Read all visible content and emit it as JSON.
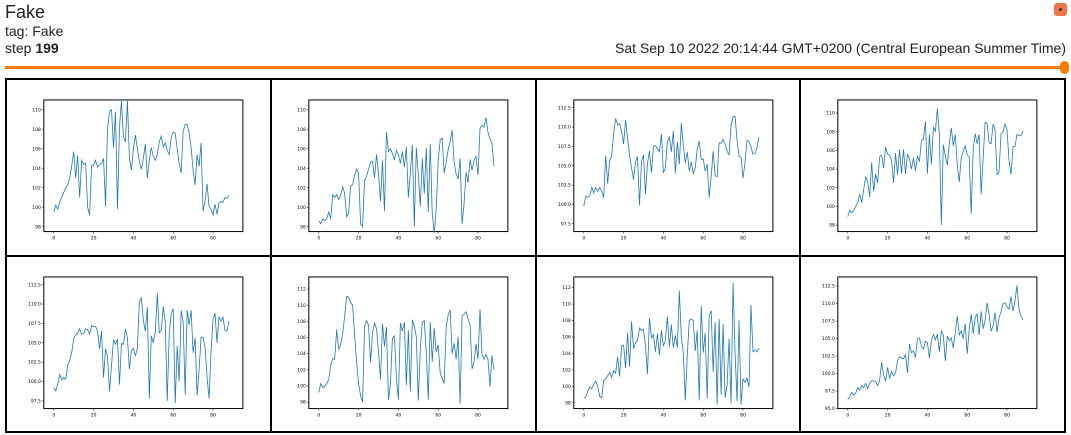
{
  "header": {
    "title": "Fake",
    "tag": "tag: Fake",
    "step_label": "step",
    "step_value": "199",
    "wall_time": "Sat Sep 10 2022 20:14:44 GMT+0200 (Central European Summer Time)"
  },
  "slider": {
    "value": 1.0,
    "color": "#f57c00"
  },
  "menu_button": {
    "icon": "menu-dot-icon",
    "color": "#f0764a"
  },
  "chart_data": [
    {
      "type": "line",
      "x_ticks": [
        "0",
        "20",
        "40",
        "60",
        "80"
      ],
      "y_ticks": [
        "98",
        "100",
        "102",
        "104",
        "106",
        "108",
        "110"
      ],
      "xlim": [
        -5,
        95
      ],
      "ylim": [
        97.5,
        111
      ],
      "series": [
        {
          "values": [
            99.5,
            100.2,
            99.8,
            100.6,
            101.0,
            101.5,
            102.0,
            102.3,
            103.0,
            104.2,
            105.7,
            103.0,
            105.3,
            101.0,
            104.8,
            104.4,
            104.5,
            100.0,
            99.2,
            104.3,
            104.3,
            104.8,
            104.1,
            104.4,
            104.5,
            105.0,
            100.1,
            108.0,
            109.8,
            110.0,
            106.1,
            109.8,
            99.8,
            108.2,
            110.9,
            107.2,
            106.7,
            110.9,
            105.0,
            103.8,
            106.0,
            107.4,
            106.0,
            104.7,
            103.9,
            105.0,
            106.5,
            103.0,
            104.8,
            106.1,
            105.2,
            104.8,
            105.4,
            106.7,
            107.3,
            106.2,
            106.6,
            105.8,
            105.4,
            107.2,
            107.7,
            107.6,
            106.0,
            104.5,
            103.5,
            107.8,
            108.5,
            108.5,
            107.6,
            106.1,
            103.8,
            102.3,
            105.4,
            104.2,
            106.6,
            99.6,
            100.6,
            102.4,
            100.1,
            99.8,
            99.2,
            100.3,
            99.3,
            100.4,
            100.6,
            100.5,
            101.0,
            100.9,
            101.2
          ]
        }
      ]
    },
    {
      "type": "line",
      "x_ticks": [
        "0",
        "20",
        "40",
        "60",
        "80"
      ],
      "y_ticks": [
        "98",
        "100",
        "102",
        "104",
        "106",
        "108",
        "110"
      ],
      "xlim": [
        -5,
        95
      ],
      "ylim": [
        97.5,
        111
      ],
      "series": [
        {
          "values": [
            98.6,
            98.3,
            98.8,
            98.6,
            98.8,
            99.5,
            98.8,
            101.3,
            101.0,
            101.3,
            100.8,
            101.2,
            102.1,
            101.4,
            99.0,
            99.4,
            102.2,
            102.3,
            103.3,
            103.9,
            103.5,
            98.3,
            98.0,
            102.7,
            103.2,
            103.9,
            104.6,
            104.7,
            103.0,
            105.4,
            103.5,
            100.6,
            104.8,
            99.6,
            107.7,
            105.7,
            106.0,
            105.5,
            104.9,
            105.8,
            105.4,
            104.5,
            105.7,
            104.1,
            106.2,
            101.0,
            103.5,
            106.4,
            98.0,
            106.1,
            103.3,
            100.1,
            105.0,
            101.4,
            106.1,
            99.5,
            106.5,
            99.3,
            97.4,
            99.8,
            104.8,
            106.9,
            107.1,
            103.5,
            104.6,
            105.9,
            106.7,
            107.9,
            104.6,
            103.4,
            102.9,
            105.0,
            98.3,
            100.4,
            103.6,
            102.5,
            104.9,
            103.8,
            104.8,
            105.2,
            103.3,
            108.1,
            108.4,
            108.2,
            109.2,
            107.7,
            107.0,
            106.6,
            104.2
          ]
        }
      ]
    },
    {
      "type": "line",
      "x_ticks": [
        "0",
        "20",
        "40",
        "60",
        "80"
      ],
      "y_ticks": [
        "97.5",
        "100.0",
        "102.5",
        "105.0",
        "107.5",
        "110.0",
        "112.5"
      ],
      "xlim": [
        -5,
        95
      ],
      "ylim": [
        96.5,
        113.5
      ],
      "series": [
        {
          "values": [
            99.8,
            101.1,
            100.9,
            101.1,
            102.2,
            101.5,
            102.2,
            101.7,
            102.2,
            101.7,
            100.9,
            106.3,
            102.7,
            105.7,
            106.2,
            109.1,
            111.1,
            110.3,
            110.4,
            109.5,
            107.8,
            110.9,
            108.6,
            106.3,
            104.7,
            103.2,
            105.5,
            106.2,
            99.9,
            105.5,
            106.4,
            101.3,
            105.3,
            106.9,
            104.1,
            107.5,
            107.6,
            107.2,
            106.8,
            109.1,
            104.1,
            104.7,
            108.1,
            108.7,
            106.8,
            109.5,
            104.0,
            108.1,
            105.2,
            110.5,
            107.6,
            105.4,
            106.8,
            104.3,
            105.5,
            104.0,
            104.7,
            107.2,
            108.2,
            105.8,
            105.9,
            104.3,
            105.2,
            100.9,
            103.6,
            106.9,
            103.7,
            103.6,
            108.0,
            107.9,
            108.4,
            107.8,
            106.9,
            106.4,
            110.3,
            111.3,
            111.4,
            108.3,
            106.2,
            106.1,
            103.4,
            105.4,
            108.3,
            108.1,
            107.4,
            106.5,
            106.6,
            107.3,
            108.7
          ]
        }
      ]
    },
    {
      "type": "line",
      "x_ticks": [
        "0",
        "20",
        "40",
        "60",
        "80"
      ],
      "y_ticks": [
        "98",
        "100",
        "102",
        "104",
        "106",
        "108",
        "110"
      ],
      "xlim": [
        -5,
        95
      ],
      "ylim": [
        97.3,
        111.4
      ],
      "series": [
        {
          "values": [
            98.9,
            99.6,
            99.3,
            99.6,
            100.0,
            100.4,
            101.3,
            100.4,
            101.8,
            103.2,
            102.6,
            101.0,
            104.7,
            101.6,
            103.5,
            102.5,
            105.3,
            105.5,
            104.1,
            106.3,
            105.6,
            105.5,
            104.9,
            102.5,
            105.7,
            103.4,
            106.1,
            103.5,
            106.1,
            103.5,
            105.6,
            105.1,
            104.0,
            105.2,
            103.8,
            105.4,
            104.8,
            107.1,
            107.2,
            109.1,
            103.5,
            107.7,
            104.5,
            108.5,
            108.0,
            110.5,
            107.8,
            98.0,
            106.6,
            105.4,
            104.4,
            106.7,
            108.4,
            106.5,
            107.7,
            104.5,
            102.6,
            105.2,
            105.9,
            106.5,
            105.5,
            105.3,
            99.2,
            106.0,
            107.8,
            106.7,
            107.7,
            101.3,
            105.1,
            109.0,
            108.9,
            106.8,
            106.7,
            108.8,
            108.2,
            103.4,
            103.7,
            107.8,
            108.0,
            108.8,
            108.2,
            104.9,
            103.4,
            106.4,
            106.4,
            107.7,
            107.6,
            107.6,
            108.1
          ]
        }
      ]
    },
    {
      "type": "line",
      "x_ticks": [
        "0",
        "20",
        "40",
        "60",
        "80"
      ],
      "y_ticks": [
        "97.5",
        "100.0",
        "102.5",
        "105.0",
        "107.5",
        "110.0",
        "112.5"
      ],
      "xlim": [
        -5,
        95
      ],
      "ylim": [
        96.5,
        113.5
      ],
      "series": [
        {
          "values": [
            99.2,
            98.8,
            99.7,
            100.9,
            100.2,
            100.5,
            100.3,
            102.1,
            102.7,
            103.7,
            105.6,
            106.0,
            106.2,
            106.8,
            106.1,
            106.2,
            106.8,
            106.7,
            106.1,
            107.2,
            107.1,
            107.1,
            106.5,
            104.2,
            106.5,
            100.5,
            104.2,
            103.2,
            98.7,
            102.1,
            105.4,
            104.8,
            105.5,
            99.6,
            104.9,
            104.8,
            106.8,
            105.6,
            101.6,
            104.0,
            104.3,
            103.3,
            104.3,
            110.3,
            110.8,
            107.9,
            106.5,
            109.6,
            97.8,
            105.9,
            105.0,
            106.4,
            111.4,
            106.3,
            106.6,
            109.7,
            107.6,
            97.5,
            106.1,
            108.8,
            109.4,
            97.2,
            104.6,
            100.0,
            109.2,
            107.7,
            98.3,
            109.2,
            107.3,
            109.2,
            103.7,
            105.6,
            98.2,
            101.5,
            105.7,
            105.7,
            104.4,
            100.6,
            97.8,
            103.8,
            108.0,
            108.8,
            105.0,
            108.3,
            107.8,
            108.3,
            106.6,
            106.5,
            107.8
          ]
        }
      ]
    },
    {
      "type": "line",
      "x_ticks": [
        "0",
        "20",
        "40",
        "60",
        "80"
      ],
      "y_ticks": [
        "98",
        "100",
        "102",
        "104",
        "106",
        "108",
        "110",
        "112"
      ],
      "xlim": [
        -5,
        95
      ],
      "ylim": [
        97.2,
        113.5
      ],
      "series": [
        {
          "values": [
            99.2,
            100.3,
            99.8,
            100.0,
            100.3,
            100.8,
            102.6,
            103.4,
            103.3,
            107.0,
            104.5,
            105.1,
            106.5,
            108.6,
            111.1,
            111.0,
            110.3,
            110.0,
            106.3,
            102.9,
            100.3,
            98.8,
            98.0,
            107.4,
            108.1,
            107.5,
            102.9,
            106.5,
            107.8,
            107.1,
            104.2,
            100.8,
            107.7,
            104.9,
            107.3,
            98.3,
            100.3,
            105.9,
            106.2,
            101.0,
            98.3,
            107.8,
            106.8,
            107.9,
            100.1,
            106.9,
            99.3,
            108.2,
            107.4,
            106.1,
            98.2,
            104.6,
            107.9,
            108.1,
            104.2,
            98.3,
            107.9,
            103.0,
            107.2,
            104.2,
            105.1,
            101.6,
            100.9,
            100.3,
            107.3,
            108.8,
            109.4,
            104.0,
            105.3,
            103.3,
            106.1,
            97.8,
            108.7,
            108.9,
            109.2,
            108.3,
            107.6,
            102.1,
            103.0,
            105.2,
            103.3,
            109.5,
            104.0,
            103.3,
            103.9,
            103.3,
            99.9,
            103.8,
            102.0
          ]
        }
      ]
    },
    {
      "type": "line",
      "x_ticks": [
        "0",
        "20",
        "40",
        "60",
        "80"
      ],
      "y_ticks": [
        "98",
        "100",
        "102",
        "104",
        "106",
        "108",
        "110",
        "112"
      ],
      "xlim": [
        -5,
        95
      ],
      "ylim": [
        97.3,
        113.3
      ],
      "series": [
        {
          "values": [
            98.6,
            98.7,
            99.4,
            99.9,
            99.7,
            100.3,
            100.6,
            100.0,
            98.8,
            98.6,
            100.7,
            100.9,
            101.3,
            101.7,
            101.1,
            101.9,
            101.6,
            103.6,
            101.2,
            104.9,
            105.0,
            102.2,
            106.5,
            102.4,
            107.9,
            104.6,
            105.3,
            105.6,
            107.1,
            106.8,
            106.9,
            104.9,
            101.5,
            108.3,
            105.9,
            106.3,
            104.2,
            106.4,
            103.8,
            106.8,
            104.9,
            105.6,
            108.5,
            104.8,
            107.5,
            104.7,
            106.2,
            104.7,
            111.6,
            106.0,
            104.1,
            98.3,
            103.8,
            108.0,
            108.2,
            108.0,
            104.3,
            106.8,
            98.3,
            109.8,
            104.1,
            106.5,
            98.5,
            108.6,
            109.2,
            101.7,
            107.8,
            97.8,
            108.2,
            99.0,
            107.6,
            98.6,
            100.2,
            105.8,
            97.9,
            112.6,
            104.0,
            98.2,
            108.0,
            97.8,
            100.9,
            100.5,
            101.0,
            99.9,
            109.9,
            104.2,
            104.4,
            104.2,
            104.6
          ]
        }
      ]
    },
    {
      "type": "line",
      "x_ticks": [
        "0",
        "20",
        "40",
        "60",
        "80"
      ],
      "y_ticks": [
        "95.0",
        "97.5",
        "100.0",
        "102.5",
        "105.0",
        "107.5",
        "110.0",
        "112.5"
      ],
      "xlim": [
        -5,
        95
      ],
      "ylim": [
        95.0,
        113.8
      ],
      "series": [
        {
          "values": [
            96.3,
            96.7,
            97.3,
            96.9,
            97.2,
            98.0,
            97.6,
            98.3,
            98.0,
            98.6,
            97.9,
            98.6,
            99.0,
            98.9,
            98.9,
            98.3,
            99.0,
            101.6,
            99.8,
            98.9,
            100.9,
            99.3,
            100.3,
            99.7,
            100.1,
            101.8,
            102.4,
            102.2,
            102.1,
            102.7,
            100.1,
            104.2,
            103.0,
            103.2,
            102.3,
            105.0,
            105.1,
            103.9,
            103.5,
            104.6,
            104.4,
            102.2,
            104.7,
            105.6,
            104.8,
            105.6,
            103.1,
            106.1,
            105.5,
            101.8,
            105.4,
            104.7,
            105.1,
            103.6,
            105.9,
            108.2,
            105.5,
            106.1,
            105.0,
            107.1,
            102.8,
            106.3,
            108.5,
            105.7,
            108.0,
            108.5,
            105.5,
            108.9,
            106.4,
            107.7,
            110.1,
            108.4,
            106.1,
            106.8,
            108.7,
            105.9,
            108.0,
            108.8,
            110.0,
            110.1,
            109.5,
            109.2,
            111.0,
            108.9,
            110.4,
            112.6,
            109.2,
            108.2,
            107.7
          ]
        }
      ]
    }
  ]
}
